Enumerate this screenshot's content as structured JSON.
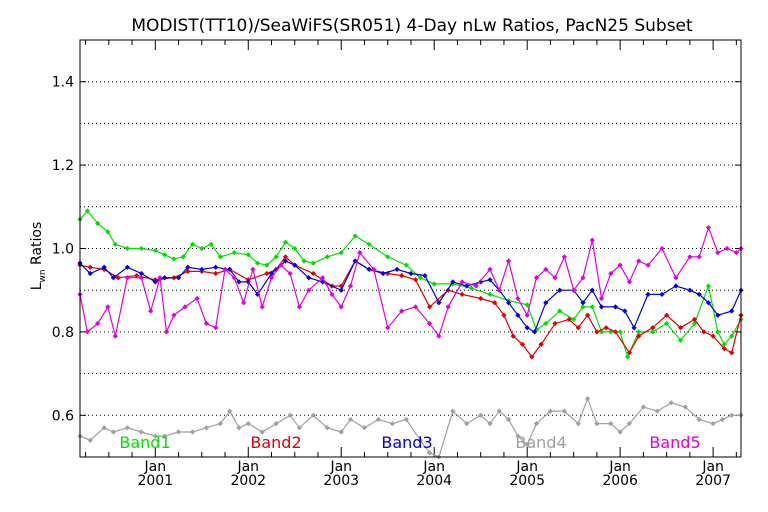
{
  "chart_data": {
    "type": "line",
    "title": "MODIST(TT10)/SeaWiFS(SR051) 4-Day nLw Ratios, PacN25 Subset",
    "ylabel": "L",
    "ylabel_sub": "wn",
    "ylabel_rest": " Ratios",
    "xlim": [
      2000.19,
      2007.3
    ],
    "ylim": [
      0.5,
      1.5
    ],
    "grid": true,
    "legend_placement": "bottom",
    "y_ticks": [
      "0.6",
      "0.8",
      "1.0",
      "1.2",
      "1.4"
    ],
    "y_tick_values": [
      0.6,
      0.8,
      1.0,
      1.2,
      1.4
    ],
    "x_ticks": [
      {
        "top": "Jan",
        "bottom": "2001",
        "value": 2001.0
      },
      {
        "top": "Jan",
        "bottom": "2002",
        "value": 2002.0
      },
      {
        "top": "Jan",
        "bottom": "2003",
        "value": 2003.0
      },
      {
        "top": "Jan",
        "bottom": "2004",
        "value": 2004.0
      },
      {
        "top": "Jan",
        "bottom": "2005",
        "value": 2005.0
      },
      {
        "top": "Jan",
        "bottom": "2006",
        "value": 2006.0
      },
      {
        "top": "Jan",
        "bottom": "2007",
        "value": 2007.0
      }
    ],
    "series": [
      {
        "name": "Band1",
        "color": "#00e000",
        "points": [
          [
            2000.19,
            1.07
          ],
          [
            2000.27,
            1.09
          ],
          [
            2000.38,
            1.06
          ],
          [
            2000.49,
            1.04
          ],
          [
            2000.57,
            1.01
          ],
          [
            2000.7,
            1.0
          ],
          [
            2000.85,
            1.0
          ],
          [
            2001.0,
            0.995
          ],
          [
            2001.1,
            0.985
          ],
          [
            2001.2,
            0.975
          ],
          [
            2001.3,
            0.98
          ],
          [
            2001.4,
            1.01
          ],
          [
            2001.5,
            1.0
          ],
          [
            2001.6,
            1.01
          ],
          [
            2001.7,
            0.98
          ],
          [
            2001.85,
            0.99
          ],
          [
            2002.0,
            0.985
          ],
          [
            2002.1,
            0.965
          ],
          [
            2002.2,
            0.96
          ],
          [
            2002.3,
            0.98
          ],
          [
            2002.4,
            1.015
          ],
          [
            2002.5,
            1.0
          ],
          [
            2002.6,
            0.97
          ],
          [
            2002.7,
            0.965
          ],
          [
            2002.85,
            0.98
          ],
          [
            2003.0,
            0.99
          ],
          [
            2003.15,
            1.03
          ],
          [
            2003.3,
            1.01
          ],
          [
            2003.5,
            0.98
          ],
          [
            2003.7,
            0.96
          ],
          [
            2003.85,
            0.93
          ],
          [
            2004.0,
            0.915
          ],
          [
            2004.2,
            0.915
          ],
          [
            2004.4,
            0.905
          ],
          [
            2004.6,
            0.89
          ],
          [
            2004.8,
            0.875
          ],
          [
            2005.0,
            0.865
          ],
          [
            2005.1,
            0.805
          ],
          [
            2005.2,
            0.82
          ],
          [
            2005.35,
            0.85
          ],
          [
            2005.5,
            0.83
          ],
          [
            2005.6,
            0.86
          ],
          [
            2005.7,
            0.86
          ],
          [
            2005.8,
            0.8
          ],
          [
            2005.9,
            0.8
          ],
          [
            2006.0,
            0.8
          ],
          [
            2006.08,
            0.74
          ],
          [
            2006.2,
            0.8
          ],
          [
            2006.35,
            0.8
          ],
          [
            2006.5,
            0.82
          ],
          [
            2006.65,
            0.78
          ],
          [
            2006.8,
            0.82
          ],
          [
            2006.95,
            0.91
          ],
          [
            2007.05,
            0.8
          ],
          [
            2007.12,
            0.77
          ],
          [
            2007.2,
            0.79
          ],
          [
            2007.3,
            0.83
          ]
        ]
      },
      {
        "name": "Band2",
        "color": "#e00000",
        "points": [
          [
            2000.19,
            0.96
          ],
          [
            2000.3,
            0.955
          ],
          [
            2000.45,
            0.95
          ],
          [
            2000.6,
            0.93
          ],
          [
            2000.8,
            0.935
          ],
          [
            2001.0,
            0.925
          ],
          [
            2001.2,
            0.93
          ],
          [
            2001.35,
            0.945
          ],
          [
            2001.5,
            0.945
          ],
          [
            2001.65,
            0.94
          ],
          [
            2001.8,
            0.95
          ],
          [
            2002.0,
            0.925
          ],
          [
            2002.2,
            0.94
          ],
          [
            2002.3,
            0.95
          ],
          [
            2002.4,
            0.98
          ],
          [
            2002.5,
            0.96
          ],
          [
            2002.7,
            0.94
          ],
          [
            2002.9,
            0.91
          ],
          [
            2003.0,
            0.91
          ],
          [
            2003.15,
            0.97
          ],
          [
            2003.3,
            0.95
          ],
          [
            2003.5,
            0.94
          ],
          [
            2003.65,
            0.935
          ],
          [
            2003.8,
            0.925
          ],
          [
            2003.95,
            0.86
          ],
          [
            2004.15,
            0.9
          ],
          [
            2004.3,
            0.89
          ],
          [
            2004.5,
            0.88
          ],
          [
            2004.65,
            0.87
          ],
          [
            2004.75,
            0.84
          ],
          [
            2004.85,
            0.79
          ],
          [
            2004.95,
            0.77
          ],
          [
            2005.05,
            0.74
          ],
          [
            2005.15,
            0.77
          ],
          [
            2005.3,
            0.82
          ],
          [
            2005.45,
            0.83
          ],
          [
            2005.55,
            0.81
          ],
          [
            2005.65,
            0.84
          ],
          [
            2005.75,
            0.8
          ],
          [
            2005.85,
            0.81
          ],
          [
            2005.95,
            0.8
          ],
          [
            2006.1,
            0.75
          ],
          [
            2006.2,
            0.79
          ],
          [
            2006.35,
            0.81
          ],
          [
            2006.5,
            0.84
          ],
          [
            2006.65,
            0.81
          ],
          [
            2006.8,
            0.83
          ],
          [
            2006.9,
            0.8
          ],
          [
            2007.0,
            0.79
          ],
          [
            2007.12,
            0.76
          ],
          [
            2007.2,
            0.75
          ],
          [
            2007.3,
            0.84
          ]
        ]
      },
      {
        "name": "Band3",
        "color": "#0000e0",
        "points": [
          [
            2000.19,
            0.965
          ],
          [
            2000.3,
            0.94
          ],
          [
            2000.45,
            0.955
          ],
          [
            2000.55,
            0.93
          ],
          [
            2000.7,
            0.955
          ],
          [
            2000.85,
            0.94
          ],
          [
            2001.0,
            0.92
          ],
          [
            2001.1,
            0.93
          ],
          [
            2001.25,
            0.93
          ],
          [
            2001.35,
            0.955
          ],
          [
            2001.5,
            0.95
          ],
          [
            2001.65,
            0.955
          ],
          [
            2001.8,
            0.95
          ],
          [
            2001.9,
            0.92
          ],
          [
            2002.0,
            0.92
          ],
          [
            2002.1,
            0.89
          ],
          [
            2002.25,
            0.94
          ],
          [
            2002.4,
            0.97
          ],
          [
            2002.5,
            0.96
          ],
          [
            2002.65,
            0.93
          ],
          [
            2002.8,
            0.92
          ],
          [
            2003.0,
            0.9
          ],
          [
            2003.15,
            0.97
          ],
          [
            2003.3,
            0.95
          ],
          [
            2003.45,
            0.94
          ],
          [
            2003.6,
            0.95
          ],
          [
            2003.75,
            0.94
          ],
          [
            2003.9,
            0.935
          ],
          [
            2004.05,
            0.87
          ],
          [
            2004.2,
            0.92
          ],
          [
            2004.35,
            0.91
          ],
          [
            2004.5,
            0.92
          ],
          [
            2004.6,
            0.925
          ],
          [
            2004.7,
            0.9
          ],
          [
            2004.8,
            0.87
          ],
          [
            2004.9,
            0.84
          ],
          [
            2005.0,
            0.81
          ],
          [
            2005.08,
            0.8
          ],
          [
            2005.2,
            0.87
          ],
          [
            2005.35,
            0.9
          ],
          [
            2005.5,
            0.9
          ],
          [
            2005.6,
            0.87
          ],
          [
            2005.7,
            0.9
          ],
          [
            2005.8,
            0.86
          ],
          [
            2005.95,
            0.86
          ],
          [
            2006.05,
            0.85
          ],
          [
            2006.15,
            0.81
          ],
          [
            2006.3,
            0.89
          ],
          [
            2006.45,
            0.89
          ],
          [
            2006.6,
            0.91
          ],
          [
            2006.75,
            0.9
          ],
          [
            2006.85,
            0.89
          ],
          [
            2006.95,
            0.87
          ],
          [
            2007.05,
            0.84
          ],
          [
            2007.2,
            0.85
          ],
          [
            2007.3,
            0.9
          ]
        ]
      },
      {
        "name": "Band4",
        "color": "#a0a0a0",
        "points": [
          [
            2000.19,
            0.55
          ],
          [
            2000.3,
            0.54
          ],
          [
            2000.45,
            0.57
          ],
          [
            2000.55,
            0.56
          ],
          [
            2000.7,
            0.57
          ],
          [
            2000.85,
            0.56
          ],
          [
            2001.0,
            0.55
          ],
          [
            2001.1,
            0.55
          ],
          [
            2001.25,
            0.56
          ],
          [
            2001.4,
            0.56
          ],
          [
            2001.55,
            0.57
          ],
          [
            2001.7,
            0.58
          ],
          [
            2001.8,
            0.61
          ],
          [
            2001.9,
            0.57
          ],
          [
            2002.0,
            0.58
          ],
          [
            2002.15,
            0.56
          ],
          [
            2002.3,
            0.58
          ],
          [
            2002.45,
            0.6
          ],
          [
            2002.55,
            0.57
          ],
          [
            2002.7,
            0.6
          ],
          [
            2002.85,
            0.57
          ],
          [
            2003.0,
            0.56
          ],
          [
            2003.1,
            0.59
          ],
          [
            2003.25,
            0.57
          ],
          [
            2003.4,
            0.59
          ],
          [
            2003.55,
            0.58
          ],
          [
            2003.7,
            0.59
          ],
          [
            2003.85,
            0.54
          ],
          [
            2003.95,
            0.51
          ],
          [
            2004.05,
            0.5
          ],
          [
            2004.2,
            0.61
          ],
          [
            2004.35,
            0.58
          ],
          [
            2004.5,
            0.6
          ],
          [
            2004.6,
            0.58
          ],
          [
            2004.7,
            0.61
          ],
          [
            2004.8,
            0.59
          ],
          [
            2004.9,
            0.55
          ],
          [
            2005.0,
            0.53
          ],
          [
            2005.1,
            0.58
          ],
          [
            2005.25,
            0.61
          ],
          [
            2005.4,
            0.61
          ],
          [
            2005.55,
            0.58
          ],
          [
            2005.65,
            0.64
          ],
          [
            2005.75,
            0.58
          ],
          [
            2005.9,
            0.58
          ],
          [
            2006.0,
            0.56
          ],
          [
            2006.1,
            0.58
          ],
          [
            2006.25,
            0.62
          ],
          [
            2006.4,
            0.61
          ],
          [
            2006.55,
            0.63
          ],
          [
            2006.7,
            0.62
          ],
          [
            2006.85,
            0.59
          ],
          [
            2007.0,
            0.58
          ],
          [
            2007.1,
            0.59
          ],
          [
            2007.2,
            0.6
          ],
          [
            2007.3,
            0.6
          ]
        ]
      },
      {
        "name": "Band5",
        "color": "#e000e0",
        "points": [
          [
            2000.19,
            0.89
          ],
          [
            2000.27,
            0.8
          ],
          [
            2000.38,
            0.82
          ],
          [
            2000.49,
            0.86
          ],
          [
            2000.57,
            0.79
          ],
          [
            2000.7,
            0.93
          ],
          [
            2000.85,
            0.93
          ],
          [
            2000.95,
            0.85
          ],
          [
            2001.05,
            0.93
          ],
          [
            2001.12,
            0.8
          ],
          [
            2001.2,
            0.84
          ],
          [
            2001.32,
            0.86
          ],
          [
            2001.45,
            0.88
          ],
          [
            2001.55,
            0.82
          ],
          [
            2001.65,
            0.81
          ],
          [
            2001.75,
            0.95
          ],
          [
            2001.85,
            0.93
          ],
          [
            2001.95,
            0.87
          ],
          [
            2002.05,
            0.95
          ],
          [
            2002.15,
            0.86
          ],
          [
            2002.25,
            0.93
          ],
          [
            2002.35,
            0.96
          ],
          [
            2002.45,
            0.94
          ],
          [
            2002.55,
            0.86
          ],
          [
            2002.65,
            0.9
          ],
          [
            2002.8,
            0.93
          ],
          [
            2002.9,
            0.89
          ],
          [
            2003.0,
            0.86
          ],
          [
            2003.1,
            0.91
          ],
          [
            2003.2,
            0.99
          ],
          [
            2003.35,
            0.95
          ],
          [
            2003.5,
            0.81
          ],
          [
            2003.65,
            0.85
          ],
          [
            2003.8,
            0.86
          ],
          [
            2003.95,
            0.82
          ],
          [
            2004.05,
            0.79
          ],
          [
            2004.15,
            0.86
          ],
          [
            2004.3,
            0.92
          ],
          [
            2004.45,
            0.91
          ],
          [
            2004.6,
            0.95
          ],
          [
            2004.7,
            0.9
          ],
          [
            2004.8,
            0.97
          ],
          [
            2004.9,
            0.88
          ],
          [
            2005.0,
            0.84
          ],
          [
            2005.1,
            0.93
          ],
          [
            2005.2,
            0.95
          ],
          [
            2005.3,
            0.93
          ],
          [
            2005.4,
            0.98
          ],
          [
            2005.5,
            0.9
          ],
          [
            2005.6,
            0.93
          ],
          [
            2005.7,
            1.02
          ],
          [
            2005.8,
            0.88
          ],
          [
            2005.9,
            0.94
          ],
          [
            2006.0,
            0.96
          ],
          [
            2006.1,
            0.92
          ],
          [
            2006.2,
            0.97
          ],
          [
            2006.3,
            0.96
          ],
          [
            2006.45,
            1.0
          ],
          [
            2006.6,
            0.93
          ],
          [
            2006.75,
            0.98
          ],
          [
            2006.85,
            0.98
          ],
          [
            2006.95,
            1.05
          ],
          [
            2007.05,
            0.99
          ],
          [
            2007.15,
            1.0
          ],
          [
            2007.25,
            0.99
          ],
          [
            2007.3,
            1.0
          ]
        ]
      }
    ]
  }
}
